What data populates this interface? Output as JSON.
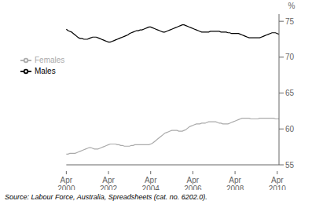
{
  "chart_data": {
    "type": "line",
    "ylabel": "%",
    "annotations": [
      "Source: Labour Force, Australia, Spreadsheets (cat. no. 6202.0)."
    ],
    "categories": [
      "Apr\n2000",
      null,
      null,
      null,
      null,
      null,
      null,
      null,
      null,
      null,
      null,
      null,
      null,
      null,
      null,
      null,
      null,
      null,
      null,
      null,
      null,
      null,
      null,
      null,
      "Apr\n2002",
      null,
      null,
      null,
      null,
      null,
      null,
      null,
      null,
      null,
      null,
      null,
      null,
      null,
      null,
      null,
      null,
      null,
      null,
      null,
      null,
      null,
      null,
      null,
      "Apr\n2004",
      null,
      null,
      null,
      null,
      null,
      null,
      null,
      null,
      null,
      null,
      null,
      null,
      null,
      null,
      null,
      null,
      null,
      null,
      null,
      null,
      null,
      null,
      null,
      "Apr\n2006",
      null,
      null,
      null,
      null,
      null,
      null,
      null,
      null,
      null,
      null,
      null,
      null,
      null,
      null,
      null,
      null,
      null,
      null,
      null,
      null,
      null,
      null,
      null,
      "Apr\n2008",
      null,
      null,
      null,
      null,
      null,
      null,
      null,
      null,
      null,
      null,
      null,
      null,
      null,
      null,
      null,
      null,
      null,
      null,
      null,
      null,
      null,
      null,
      null,
      "Apr\n2010",
      null
    ],
    "series": [
      {
        "name": "Males",
        "color": "#000000",
        "values": [
          73.9,
          73.7,
          73.6,
          73.5,
          73.3,
          73.1,
          72.9,
          72.7,
          72.6,
          72.6,
          72.5,
          72.5,
          72.5,
          72.6,
          72.7,
          72.8,
          72.8,
          72.8,
          72.7,
          72.6,
          72.5,
          72.4,
          72.3,
          72.2,
          72.1,
          72.1,
          72.2,
          72.3,
          72.4,
          72.5,
          72.6,
          72.7,
          72.8,
          72.9,
          73.0,
          73.1,
          73.3,
          73.4,
          73.5,
          73.6,
          73.7,
          73.7,
          73.8,
          73.8,
          73.9,
          74.0,
          74.1,
          74.2,
          74.2,
          74.1,
          74.0,
          73.9,
          73.8,
          73.7,
          73.6,
          73.5,
          73.5,
          73.6,
          73.7,
          73.8,
          73.9,
          74.0,
          74.1,
          74.2,
          74.3,
          74.4,
          74.5,
          74.5,
          74.4,
          74.3,
          74.2,
          74.1,
          74.0,
          73.9,
          73.8,
          73.7,
          73.6,
          73.5,
          73.5,
          73.5,
          73.5,
          73.5,
          73.6,
          73.6,
          73.6,
          73.6,
          73.6,
          73.6,
          73.5,
          73.5,
          73.5,
          73.5,
          73.4,
          73.4,
          73.3,
          73.3,
          73.3,
          73.3,
          73.3,
          73.2,
          73.1,
          73.0,
          72.9,
          72.8,
          72.7,
          72.7,
          72.7,
          72.7,
          72.7,
          72.7,
          72.7,
          72.8,
          72.9,
          73.0,
          73.1,
          73.2,
          73.3,
          73.4,
          73.4,
          73.4,
          73.3,
          73.2
        ]
      },
      {
        "name": "Females",
        "color": "#aaaaaa",
        "values": [
          56.5,
          56.5,
          56.6,
          56.6,
          56.6,
          56.6,
          56.7,
          56.8,
          56.9,
          57.0,
          57.1,
          57.2,
          57.3,
          57.4,
          57.4,
          57.3,
          57.2,
          57.2,
          57.2,
          57.3,
          57.4,
          57.5,
          57.6,
          57.7,
          57.8,
          57.9,
          57.9,
          57.9,
          57.9,
          57.8,
          57.8,
          57.7,
          57.7,
          57.6,
          57.6,
          57.6,
          57.6,
          57.7,
          57.7,
          57.8,
          57.8,
          57.8,
          57.8,
          57.8,
          57.8,
          57.8,
          57.8,
          57.8,
          57.9,
          58.0,
          58.2,
          58.4,
          58.6,
          58.8,
          59.0,
          59.2,
          59.4,
          59.5,
          59.6,
          59.7,
          59.8,
          59.8,
          59.8,
          59.8,
          59.7,
          59.7,
          59.7,
          59.8,
          59.9,
          60.1,
          60.3,
          60.4,
          60.5,
          60.6,
          60.7,
          60.7,
          60.7,
          60.8,
          60.8,
          60.8,
          60.9,
          61.0,
          61.0,
          61.0,
          61.0,
          61.0,
          60.9,
          60.8,
          60.8,
          60.7,
          60.7,
          60.7,
          60.7,
          60.8,
          60.9,
          61.0,
          61.1,
          61.2,
          61.3,
          61.4,
          61.5,
          61.5,
          61.5,
          61.5,
          61.5,
          61.4,
          61.4,
          61.4,
          61.4,
          61.4,
          61.5,
          61.5,
          61.5,
          61.5,
          61.5,
          61.5,
          61.5,
          61.5,
          61.5,
          61.4,
          61.4,
          61.4
        ]
      }
    ],
    "ylim": [
      55,
      76
    ],
    "yticks": [
      55,
      60,
      65,
      70,
      75
    ],
    "legend": "upper left",
    "grid": false
  }
}
